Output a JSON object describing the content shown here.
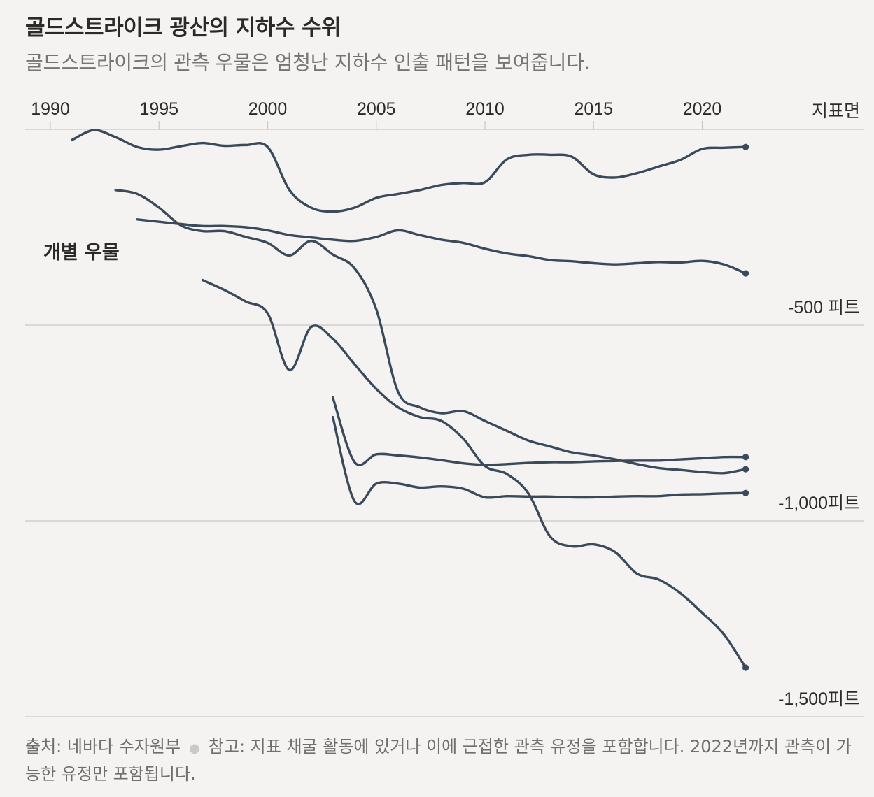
{
  "title": "골드스트라이크 광산의 지하수 수위",
  "subtitle": "골드스트라이크의 관측 우물은 엄청난 지하수 인출 패턴을 보여줍니다.",
  "footer": {
    "source": "출처: 네바다 수자원부",
    "note": "참고: 지표 채굴 활동에 있거나 이에 근접한 관측 유정을 포함합니다. 2022년까지 관측이 가능한 유정만 포함됩니다."
  },
  "colors": {
    "line": "#3b4a5a",
    "grid": "#c8c8c8",
    "background": "#f5f3f1"
  },
  "chart_data": {
    "type": "line",
    "x_axis": {
      "ticks": [
        1990,
        1995,
        2000,
        2005,
        2010,
        2015,
        2020
      ],
      "tick_labels": [
        "1990",
        "1995",
        "2000",
        "2005",
        "2010",
        "2015",
        "2020"
      ],
      "position": "top",
      "range": [
        1990,
        2022
      ]
    },
    "y_axis": {
      "label": "지표면",
      "range": [
        -1500,
        0
      ],
      "gridlines": [
        {
          "value": 0,
          "label": "지표면"
        },
        {
          "value": -500,
          "label": "-500 피트"
        },
        {
          "value": -1000,
          "label": "-1,000피트"
        },
        {
          "value": -1500,
          "label": "-1,500피트"
        }
      ]
    },
    "annotation": "개별 우물",
    "series": [
      {
        "x": [
          1991,
          1992,
          1993,
          1994,
          1995,
          1996,
          1997,
          1998,
          1999,
          2000,
          2001,
          2002,
          2003,
          2004,
          2005,
          2006,
          2007,
          2008,
          2009,
          2010,
          2011,
          2012,
          2013,
          2014,
          2015,
          2016,
          2017,
          2018,
          2019,
          2020,
          2021,
          2022
        ],
        "values": [
          -27,
          -2,
          -20,
          -45,
          -52,
          -43,
          -35,
          -42,
          -40,
          -45,
          -155,
          -200,
          -210,
          -200,
          -175,
          -165,
          -155,
          -142,
          -137,
          -135,
          -77,
          -65,
          -65,
          -70,
          -115,
          -123,
          -112,
          -95,
          -78,
          -50,
          -47,
          -45
        ]
      },
      {
        "x": [
          1993,
          1994,
          1995,
          1996,
          1997,
          1998,
          1999,
          2000,
          2001,
          2002,
          2003,
          2004,
          2005,
          2006,
          2007,
          2008,
          2009,
          2010,
          2011,
          2012,
          2013,
          2014,
          2015,
          2016,
          2017,
          2018,
          2019,
          2020,
          2021,
          2022
        ],
        "values": [
          -155,
          -165,
          -200,
          -245,
          -260,
          -260,
          -275,
          -290,
          -322,
          -285,
          -320,
          -355,
          -460,
          -670,
          -710,
          -725,
          -720,
          -745,
          -770,
          -795,
          -810,
          -825,
          -833,
          -843,
          -855,
          -865,
          -870,
          -875,
          -878,
          -868
        ]
      },
      {
        "x": [
          1994,
          1995,
          1996,
          1997,
          1998,
          1999,
          2000,
          2001,
          2002,
          2003,
          2004,
          2005,
          2006,
          2007,
          2008,
          2009,
          2010,
          2011,
          2012,
          2013,
          2014,
          2015,
          2016,
          2017,
          2018,
          2019,
          2020,
          2021,
          2022
        ],
        "values": [
          -230,
          -236,
          -242,
          -247,
          -247,
          -250,
          -258,
          -270,
          -276,
          -282,
          -285,
          -275,
          -258,
          -270,
          -282,
          -290,
          -305,
          -317,
          -324,
          -334,
          -337,
          -342,
          -345,
          -342,
          -339,
          -340,
          -336,
          -345,
          -368
        ]
      },
      {
        "x": [
          1997,
          1998,
          1999,
          2000,
          2001,
          2002,
          2003,
          2004,
          2005,
          2006,
          2007,
          2008,
          2009,
          2010,
          2011,
          2012,
          2013,
          2014,
          2015,
          2016,
          2017,
          2018,
          2019,
          2020,
          2021,
          2022
        ],
        "values": [
          -385,
          -410,
          -440,
          -470,
          -615,
          -505,
          -535,
          -600,
          -663,
          -710,
          -735,
          -745,
          -790,
          -860,
          -880,
          -930,
          -1040,
          -1065,
          -1060,
          -1080,
          -1135,
          -1150,
          -1185,
          -1235,
          -1290,
          -1375
        ]
      },
      {
        "x": [
          2003,
          2004,
          2005,
          2006,
          2007,
          2008,
          2009,
          2010,
          2011,
          2012,
          2013,
          2014,
          2015,
          2016,
          2017,
          2018,
          2019,
          2020,
          2021,
          2022
        ],
        "values": [
          -685,
          -850,
          -830,
          -833,
          -838,
          -845,
          -853,
          -857,
          -855,
          -852,
          -850,
          -850,
          -848,
          -847,
          -846,
          -846,
          -843,
          -840,
          -837,
          -837
        ]
      },
      {
        "x": [
          2003,
          2004,
          2005,
          2006,
          2007,
          2008,
          2009,
          2010,
          2011,
          2012,
          2013,
          2014,
          2015,
          2016,
          2017,
          2018,
          2019,
          2020,
          2021,
          2022
        ],
        "values": [
          -735,
          -950,
          -905,
          -905,
          -915,
          -912,
          -918,
          -940,
          -937,
          -938,
          -938,
          -940,
          -940,
          -938,
          -937,
          -937,
          -933,
          -932,
          -930,
          -929
        ]
      }
    ]
  }
}
